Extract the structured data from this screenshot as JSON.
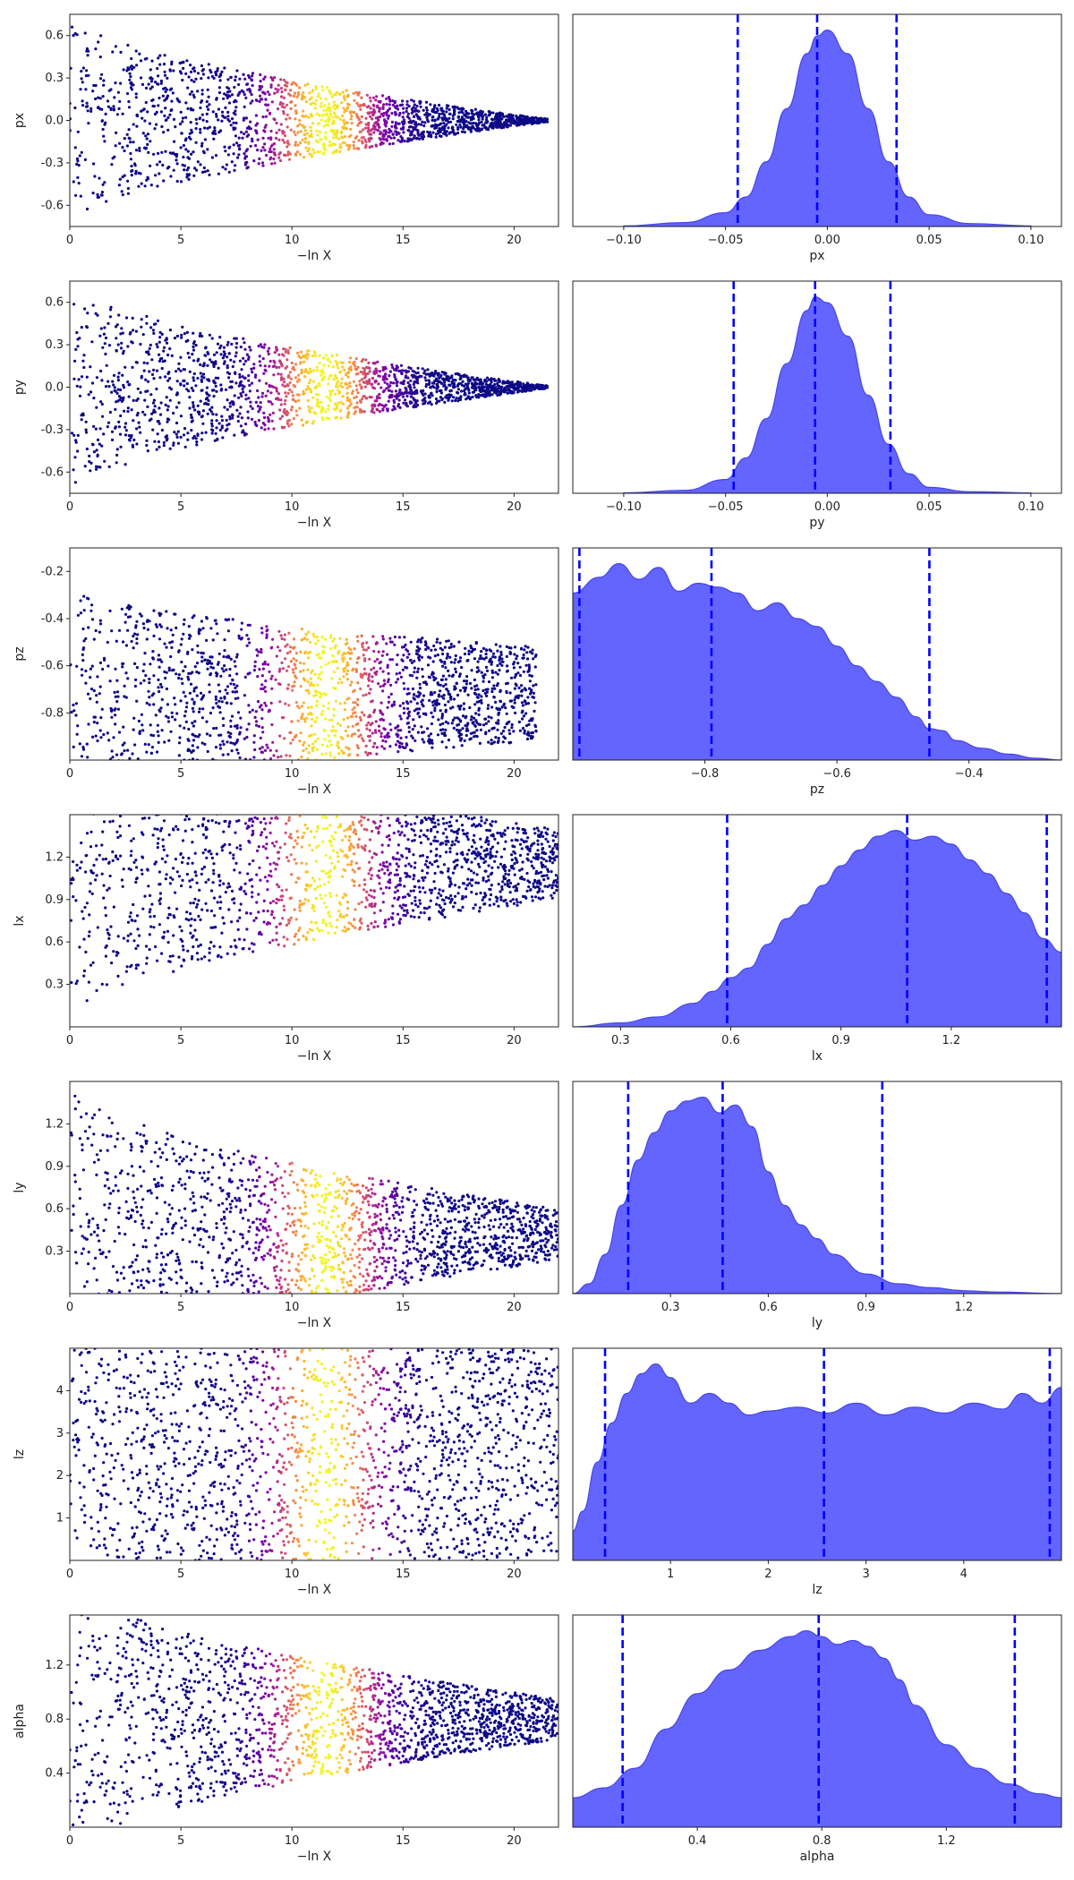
{
  "figure": {
    "trace_xlabel": "−ln X",
    "colors": {
      "density_fill": "#6464ff",
      "density_edge": "#4646e6",
      "quantile_line": "#0000ff",
      "cmap": "plasma"
    }
  },
  "chart_data": [
    {
      "type": "scatter",
      "panel": "trace",
      "param": "px",
      "xlabel": "−ln X",
      "ylabel": "px",
      "xlim": [
        0,
        22
      ],
      "ylim": [
        -0.75,
        0.75
      ],
      "xticks": [
        "0",
        "5",
        "10",
        "15",
        "20"
      ],
      "yticks": [
        "-0.6",
        "-0.3",
        "0.0",
        "0.3",
        "0.6"
      ],
      "center": 0.0,
      "spread_start": 0.75,
      "spread_end": 0.01,
      "color_peak": 11.5,
      "max_x": 21.5
    },
    {
      "type": "area",
      "panel": "posterior",
      "param": "px",
      "xlabel": "px",
      "xlim": [
        -0.125,
        0.115
      ],
      "xticks": [
        "−0.10",
        "−0.05",
        "0.00",
        "0.05",
        "0.10"
      ],
      "x": [
        -0.1,
        -0.07,
        -0.05,
        -0.04,
        -0.03,
        -0.02,
        -0.01,
        -0.005,
        0.0,
        0.01,
        0.02,
        0.03,
        0.04,
        0.05,
        0.07,
        0.1
      ],
      "density": [
        0.003,
        0.02,
        0.07,
        0.15,
        0.33,
        0.6,
        0.88,
        0.97,
        1.0,
        0.88,
        0.6,
        0.33,
        0.15,
        0.06,
        0.015,
        0.003
      ],
      "quantiles": [
        -0.044,
        -0.005,
        0.034
      ]
    },
    {
      "type": "scatter",
      "panel": "trace",
      "param": "py",
      "xlabel": "−ln X",
      "ylabel": "py",
      "xlim": [
        0,
        22
      ],
      "ylim": [
        -0.75,
        0.75
      ],
      "xticks": [
        "0",
        "5",
        "10",
        "15",
        "20"
      ],
      "yticks": [
        "-0.6",
        "-0.3",
        "0.0",
        "0.3",
        "0.6"
      ],
      "center": 0.0,
      "spread_start": 0.75,
      "spread_end": 0.01,
      "color_peak": 11.5,
      "max_x": 21.5
    },
    {
      "type": "area",
      "panel": "posterior",
      "param": "py",
      "xlabel": "py",
      "xlim": [
        -0.125,
        0.115
      ],
      "xticks": [
        "−0.10",
        "−0.05",
        "0.00",
        "0.05",
        "0.10"
      ],
      "x": [
        -0.1,
        -0.07,
        -0.05,
        -0.04,
        -0.03,
        -0.02,
        -0.01,
        -0.006,
        0.0,
        0.01,
        0.02,
        0.03,
        0.04,
        0.05,
        0.07,
        0.1
      ],
      "density": [
        0.002,
        0.015,
        0.07,
        0.18,
        0.38,
        0.66,
        0.93,
        1.0,
        0.97,
        0.8,
        0.5,
        0.25,
        0.1,
        0.03,
        0.008,
        0.002
      ],
      "quantiles": [
        -0.046,
        -0.006,
        0.031
      ]
    },
    {
      "type": "scatter",
      "panel": "trace",
      "param": "pz",
      "xlabel": "−ln X",
      "ylabel": "pz",
      "xlim": [
        0,
        22
      ],
      "ylim": [
        -1.0,
        -0.1
      ],
      "xticks": [
        "0",
        "5",
        "10",
        "15",
        "20"
      ],
      "yticks": [
        "-0.8",
        "-0.6",
        "-0.4",
        "-0.2"
      ],
      "center": -0.72,
      "spread_start": 0.45,
      "spread_end": 0.2,
      "color_peak": 11.5,
      "max_x": 21.0
    },
    {
      "type": "area",
      "panel": "posterior",
      "param": "pz",
      "xlabel": "pz",
      "xlim": [
        -1.0,
        -0.26
      ],
      "xticks": [
        "−0.8",
        "−0.6",
        "−0.4"
      ],
      "x": [
        -1.0,
        -0.96,
        -0.93,
        -0.9,
        -0.87,
        -0.84,
        -0.81,
        -0.78,
        -0.75,
        -0.72,
        -0.69,
        -0.66,
        -0.63,
        -0.6,
        -0.57,
        -0.54,
        -0.51,
        -0.48,
        -0.46,
        -0.44,
        -0.42,
        -0.38,
        -0.34,
        -0.3,
        -0.26
      ],
      "density": [
        0.85,
        0.93,
        1.0,
        0.92,
        0.98,
        0.86,
        0.9,
        0.88,
        0.85,
        0.76,
        0.8,
        0.72,
        0.68,
        0.58,
        0.48,
        0.4,
        0.32,
        0.22,
        0.16,
        0.15,
        0.1,
        0.06,
        0.03,
        0.01,
        0.0
      ],
      "quantiles": [
        -0.99,
        -0.79,
        -0.46
      ]
    },
    {
      "type": "scatter",
      "panel": "trace",
      "param": "lx",
      "xlabel": "−ln X",
      "ylabel": "lx",
      "xlim": [
        0,
        22
      ],
      "ylim": [
        0.0,
        1.5
      ],
      "xticks": [
        "0",
        "5",
        "10",
        "15",
        "20"
      ],
      "yticks": [
        "0.3",
        "0.6",
        "0.9",
        "1.2"
      ],
      "center": 1.15,
      "spread_start": 1.1,
      "spread_end": 0.25,
      "color_peak": 11.5,
      "max_x": 22.0
    },
    {
      "type": "area",
      "panel": "posterior",
      "param": "lx",
      "xlabel": "lx",
      "xlim": [
        0.17,
        1.5
      ],
      "xticks": [
        "0.3",
        "0.6",
        "0.9",
        "1.2"
      ],
      "x": [
        0.17,
        0.3,
        0.4,
        0.5,
        0.55,
        0.6,
        0.65,
        0.7,
        0.75,
        0.8,
        0.85,
        0.9,
        0.95,
        1.0,
        1.05,
        1.1,
        1.15,
        1.2,
        1.25,
        1.3,
        1.35,
        1.4,
        1.45,
        1.5
      ],
      "density": [
        0.0,
        0.02,
        0.05,
        0.12,
        0.18,
        0.25,
        0.3,
        0.42,
        0.55,
        0.62,
        0.72,
        0.82,
        0.9,
        0.97,
        1.0,
        0.95,
        0.97,
        0.93,
        0.85,
        0.78,
        0.68,
        0.58,
        0.45,
        0.38
      ],
      "quantiles": [
        0.59,
        1.08,
        1.46
      ]
    },
    {
      "type": "scatter",
      "panel": "trace",
      "param": "ly",
      "xlabel": "−ln X",
      "ylabel": "ly",
      "xlim": [
        0,
        22
      ],
      "ylim": [
        0.0,
        1.5
      ],
      "xticks": [
        "0",
        "5",
        "10",
        "15",
        "20"
      ],
      "yticks": [
        "0.3",
        "0.6",
        "0.9",
        "1.2"
      ],
      "center": 0.42,
      "spread_start": 1.05,
      "spread_end": 0.18,
      "color_peak": 11.5,
      "max_x": 22.0
    },
    {
      "type": "area",
      "panel": "posterior",
      "param": "ly",
      "xlabel": "ly",
      "xlim": [
        0.0,
        1.5
      ],
      "xticks": [
        "0.3",
        "0.6",
        "0.9",
        "1.2"
      ],
      "x": [
        0.0,
        0.05,
        0.1,
        0.15,
        0.2,
        0.25,
        0.3,
        0.35,
        0.4,
        0.45,
        0.5,
        0.55,
        0.6,
        0.65,
        0.7,
        0.75,
        0.8,
        0.9,
        1.0,
        1.1,
        1.2,
        1.3,
        1.5
      ],
      "density": [
        0.0,
        0.05,
        0.2,
        0.45,
        0.68,
        0.82,
        0.93,
        0.98,
        1.0,
        0.92,
        0.96,
        0.85,
        0.62,
        0.45,
        0.35,
        0.28,
        0.2,
        0.1,
        0.05,
        0.03,
        0.015,
        0.008,
        0.0
      ],
      "quantiles": [
        0.17,
        0.46,
        0.95
      ]
    },
    {
      "type": "scatter",
      "panel": "trace",
      "param": "lz",
      "xlabel": "−ln X",
      "ylabel": "lz",
      "xlim": [
        0,
        22
      ],
      "ylim": [
        0.0,
        5.0
      ],
      "xticks": [
        "0",
        "5",
        "10",
        "15",
        "20"
      ],
      "yticks": [
        "1",
        "2",
        "3",
        "4"
      ],
      "center": 2.5,
      "spread_start": 2.5,
      "spread_end": 2.5,
      "color_peak": 11.5,
      "max_x": 22.0
    },
    {
      "type": "area",
      "panel": "posterior",
      "param": "lz",
      "xlabel": "lz",
      "xlim": [
        0.0,
        5.0
      ],
      "xticks": [
        "1",
        "2",
        "3",
        "4"
      ],
      "x": [
        0.0,
        0.1,
        0.25,
        0.4,
        0.55,
        0.7,
        0.85,
        1.0,
        1.2,
        1.4,
        1.6,
        1.8,
        2.0,
        2.3,
        2.6,
        2.9,
        3.2,
        3.5,
        3.8,
        4.1,
        4.4,
        4.6,
        4.8,
        5.0
      ],
      "density": [
        0.15,
        0.25,
        0.5,
        0.7,
        0.85,
        0.95,
        1.0,
        0.93,
        0.8,
        0.85,
        0.8,
        0.74,
        0.76,
        0.78,
        0.75,
        0.8,
        0.74,
        0.78,
        0.75,
        0.8,
        0.77,
        0.85,
        0.8,
        0.88
      ],
      "quantiles": [
        0.33,
        2.57,
        4.88
      ]
    },
    {
      "type": "scatter",
      "panel": "trace",
      "param": "alpha",
      "xlabel": "−ln X",
      "ylabel": "alpha",
      "xlim": [
        0,
        22
      ],
      "ylim": [
        0.0,
        1.57
      ],
      "xticks": [
        "0",
        "5",
        "10",
        "15",
        "20"
      ],
      "yticks": [
        "0.4",
        "0.8",
        "1.2"
      ],
      "center": 0.8,
      "spread_start": 1.0,
      "spread_end": 0.15,
      "color_peak": 11.5,
      "max_x": 22.0
    },
    {
      "type": "area",
      "panel": "posterior",
      "param": "alpha",
      "xlabel": "alpha",
      "xlim": [
        0.0,
        1.57
      ],
      "xticks": [
        "0.4",
        "0.8",
        "1.2"
      ],
      "x": [
        0.0,
        0.1,
        0.2,
        0.3,
        0.4,
        0.5,
        0.6,
        0.7,
        0.75,
        0.8,
        0.85,
        0.9,
        0.95,
        1.0,
        1.05,
        1.1,
        1.2,
        1.3,
        1.4,
        1.5,
        1.57
      ],
      "density": [
        0.15,
        0.2,
        0.3,
        0.5,
        0.68,
        0.8,
        0.9,
        0.97,
        1.0,
        0.97,
        0.93,
        0.95,
        0.92,
        0.86,
        0.75,
        0.62,
        0.42,
        0.3,
        0.22,
        0.17,
        0.15
      ],
      "quantiles": [
        0.16,
        0.79,
        1.42
      ]
    }
  ]
}
